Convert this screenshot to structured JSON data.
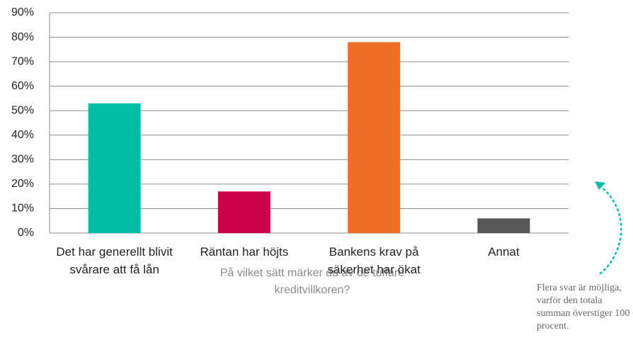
{
  "chart_data": {
    "type": "bar",
    "categories": [
      "Det har generellt blivit svårare att få lån",
      "Räntan har höjts",
      "Bankens krav på säkerhet har ökat",
      "Annat"
    ],
    "values": [
      53,
      17,
      78,
      6
    ],
    "colors": [
      "#00bda3",
      "#cc0047",
      "#ee6d27",
      "#575757"
    ],
    "ylim": [
      0,
      90
    ],
    "yticks": [
      {
        "value": 0,
        "label": "0%"
      },
      {
        "value": 10,
        "label": "10%"
      },
      {
        "value": 20,
        "label": "20%"
      },
      {
        "value": 30,
        "label": "30%"
      },
      {
        "value": 40,
        "label": "40%"
      },
      {
        "value": 50,
        "label": "50%"
      },
      {
        "value": 60,
        "label": "60%"
      },
      {
        "value": 70,
        "label": "70%"
      },
      {
        "value": 80,
        "label": "80%"
      },
      {
        "value": 90,
        "label": "90%"
      }
    ],
    "grid": true,
    "x_label": "På vilket sätt märker du av de tuffare kreditvillkoren?",
    "annotation": "Flera svar är möjliga, varför den totala summan överstiger 100 procent."
  }
}
